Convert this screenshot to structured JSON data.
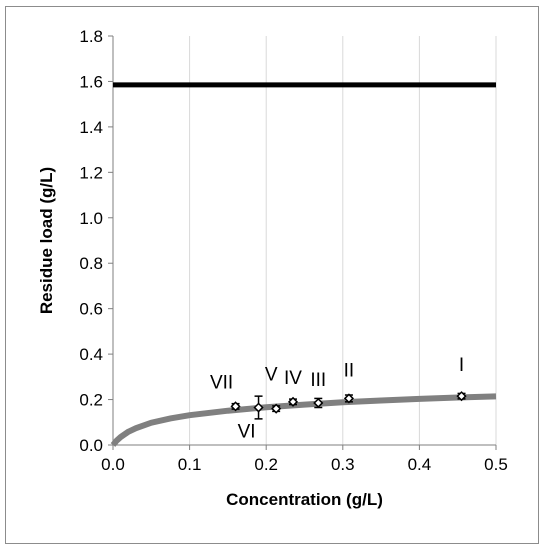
{
  "chart_data": {
    "type": "scatter",
    "title": "",
    "xlabel": "Concentration (g/L)",
    "ylabel": "Residue load (g/L)",
    "xlim": [
      0,
      0.5
    ],
    "ylim": [
      0,
      1.8
    ],
    "x_ticks": [
      "0.0",
      "0.1",
      "0.2",
      "0.3",
      "0.4",
      "0.5"
    ],
    "y_ticks": [
      "0.0",
      "0.2",
      "0.4",
      "0.6",
      "0.8",
      "1.0",
      "1.2",
      "1.4",
      "1.6",
      "1.8"
    ],
    "grid": "vertical",
    "colors": {
      "points": "#000000",
      "curve": "#808080",
      "limit_line": "#000000",
      "grid": "#d9d9d9",
      "axis": "#7f7f7f"
    },
    "points": [
      {
        "label": "I",
        "x": 0.455,
        "y": 0.215,
        "err": 0.012
      },
      {
        "label": "II",
        "x": 0.308,
        "y": 0.205,
        "err": 0.015
      },
      {
        "label": "III",
        "x": 0.268,
        "y": 0.185,
        "err": 0.02
      },
      {
        "label": "IV",
        "x": 0.235,
        "y": 0.19,
        "err": 0.012
      },
      {
        "label": "V",
        "x": 0.213,
        "y": 0.16,
        "err": 0.012
      },
      {
        "label": "VI",
        "x": 0.19,
        "y": 0.165,
        "err": 0.05
      },
      {
        "label": "VII",
        "x": 0.16,
        "y": 0.17,
        "err": 0.012
      }
    ],
    "fit_curve": {
      "x": [
        0,
        0.005,
        0.01,
        0.02,
        0.03,
        0.05,
        0.075,
        0.1,
        0.15,
        0.2,
        0.25,
        0.3,
        0.35,
        0.4,
        0.45,
        0.5
      ],
      "y": [
        0,
        0.02,
        0.035,
        0.058,
        0.074,
        0.098,
        0.117,
        0.131,
        0.151,
        0.166,
        0.178,
        0.188,
        0.196,
        0.203,
        0.209,
        0.214
      ]
    },
    "limit_line": {
      "y": 1.585
    }
  }
}
